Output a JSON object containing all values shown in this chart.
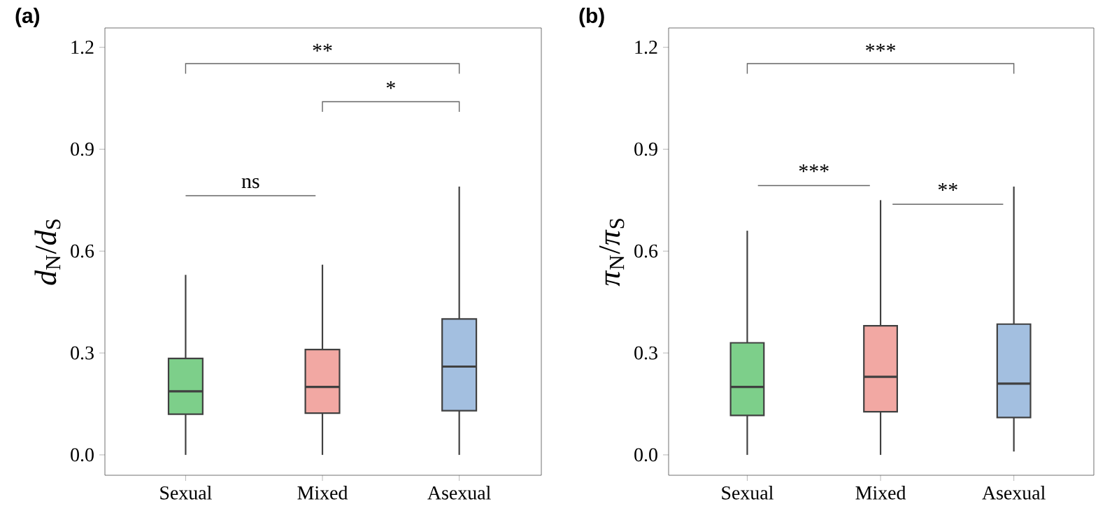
{
  "chart_data": [
    {
      "type": "box",
      "title": "(a)",
      "ylabel": "*d*$_{N}$/*d*$_{S}$",
      "categories": [
        "Sexual",
        "Mixed",
        "Asexual"
      ],
      "colors": [
        "#7dcf8a",
        "#f2a8a3",
        "#a3bfe0"
      ],
      "boxes": [
        {
          "low": 0,
          "q1": 0.12,
          "median": 0.187,
          "q3": 0.284,
          "high": 0.53
        },
        {
          "low": 0,
          "q1": 0.123,
          "median": 0.2,
          "q3": 0.31,
          "high": 0.56
        },
        {
          "low": 0,
          "q1": 0.13,
          "median": 0.26,
          "q3": 0.4,
          "high": 0.79
        }
      ],
      "ylim": [
        -0.06,
        1.257
      ],
      "yticks": [
        {
          "value": 0,
          "label": "0.0"
        },
        0.3,
        0.6,
        0.9,
        1.2
      ],
      "grid": false,
      "annotations": [
        "**",
        "*",
        "ns"
      ]
    },
    {
      "type": "box",
      "title": "(b)",
      "ylabel": "*π*$_{N}$/*π*$_{S}$",
      "categories": [
        "Sexual",
        "Mixed",
        "Asexual"
      ],
      "colors": [
        "#7dcf8a",
        "#f2a8a3",
        "#a3bfe0"
      ],
      "boxes": [
        {
          "low": 0,
          "q1": 0.116,
          "median": 0.2,
          "q3": 0.33,
          "high": 0.66
        },
        {
          "low": 0,
          "q1": 0.127,
          "median": 0.23,
          "q3": 0.38,
          "high": 0.75
        },
        {
          "low": 0.01,
          "q1": 0.11,
          "median": 0.21,
          "q3": 0.385,
          "high": 0.79
        }
      ],
      "ylim": [
        -0.06,
        1.257
      ],
      "yticks": [
        {
          "value": 0,
          "label": "0.0"
        },
        0.3,
        0.6,
        0.9,
        1.2
      ],
      "grid": false,
      "annotations": [
        "***",
        "***",
        "**"
      ]
    }
  ]
}
